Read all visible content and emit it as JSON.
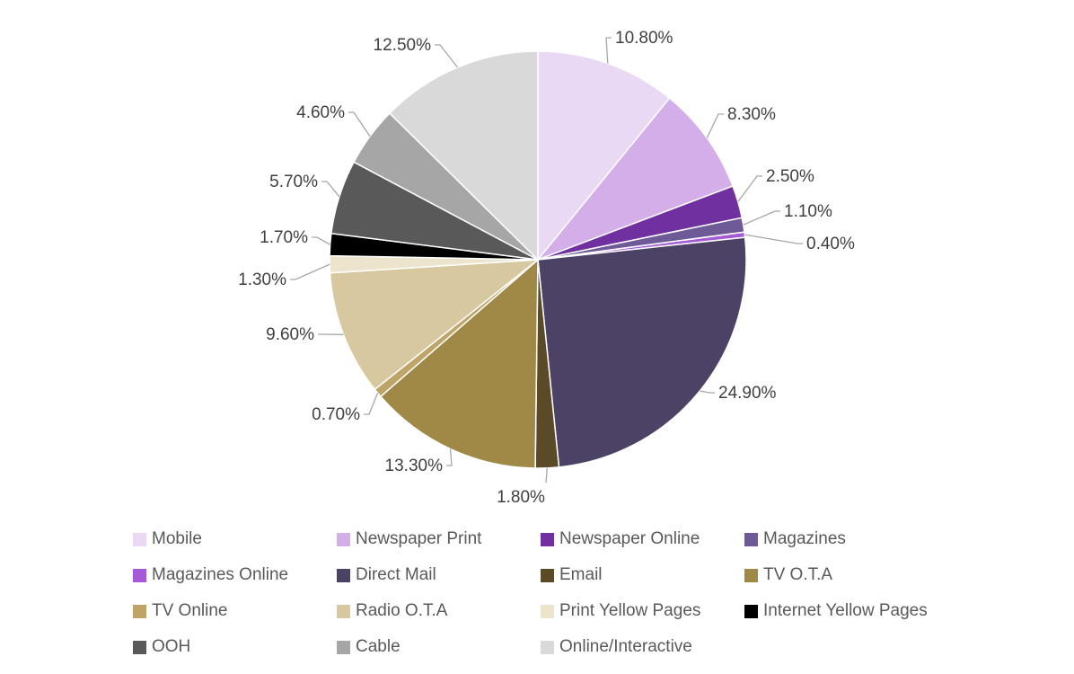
{
  "chart_data": {
    "type": "pie",
    "title": "",
    "categories": [
      "Mobile",
      "Newspaper Print",
      "Newspaper Online",
      "Magazines",
      "Magazines Online",
      "Direct Mail",
      "Email",
      "TV O.T.A",
      "TV Online",
      "Radio O.T.A",
      "Print Yellow Pages",
      "Internet Yellow Pages",
      "OOH",
      "Cable",
      "Online/Interactive"
    ],
    "values": [
      10.8,
      8.3,
      2.5,
      1.1,
      0.4,
      24.9,
      1.8,
      13.3,
      0.7,
      9.6,
      1.3,
      1.7,
      5.7,
      4.6,
      12.5
    ],
    "labels": [
      "10.80%",
      "8.30%",
      "2.50%",
      "1.10%",
      "0.40%",
      "24.90%",
      "1.80%",
      "13.30%",
      "0.70%",
      "9.60%",
      "1.30%",
      "1.70%",
      "5.70%",
      "4.60%",
      "12.50%"
    ],
    "colors": [
      "#ead9f5",
      "#d4aee9",
      "#7030a0",
      "#6e5a96",
      "#a55bd5",
      "#4b4266",
      "#5b4a28",
      "#a08846",
      "#bea466",
      "#d8c8a0",
      "#ece4cc",
      "#000000",
      "#595959",
      "#a6a6a6",
      "#d9d9d9"
    ],
    "legend_position": "bottom",
    "start_angle": "12 o'clock, clockwise"
  }
}
